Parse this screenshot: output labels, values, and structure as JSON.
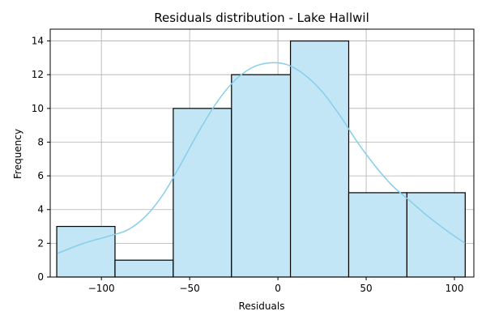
{
  "chart_data": {
    "type": "bar",
    "title": "Residuals distribution - Lake Hallwil",
    "xlabel": "Residuals",
    "ylabel": "Frequency",
    "xlim": [
      -129,
      111
    ],
    "ylim": [
      0,
      14.7
    ],
    "grid": true,
    "x_ticks": [
      -100,
      -50,
      0,
      50,
      100
    ],
    "x_tick_labels": [
      "−100",
      "−50",
      "0",
      "50",
      "100"
    ],
    "y_ticks": [
      0,
      2,
      4,
      6,
      8,
      10,
      12,
      14
    ],
    "y_tick_labels": [
      "0",
      "2",
      "4",
      "6",
      "8",
      "10",
      "12",
      "14"
    ],
    "bins": [
      {
        "x0": -125.3,
        "x1": -92.3,
        "count": 3
      },
      {
        "x0": -92.3,
        "x1": -59.3,
        "count": 1
      },
      {
        "x0": -59.3,
        "x1": -26.3,
        "count": 10
      },
      {
        "x0": -26.3,
        "x1": 7.1,
        "count": 12
      },
      {
        "x0": 7.1,
        "x1": 40.1,
        "count": 14
      },
      {
        "x0": 40.1,
        "x1": 73.1,
        "count": 5
      },
      {
        "x0": 73.1,
        "x1": 106.1,
        "count": 5
      }
    ],
    "kde": {
      "x": [
        -125,
        -110,
        -95,
        -85,
        -75,
        -65,
        -55,
        -45,
        -35,
        -25,
        -15,
        -5,
        5,
        15,
        25,
        35,
        45,
        55,
        65,
        75,
        85,
        95,
        106
      ],
      "y": [
        1.4,
        2.0,
        2.45,
        2.8,
        3.6,
        4.9,
        6.7,
        8.6,
        10.3,
        11.6,
        12.4,
        12.7,
        12.6,
        12.0,
        11.0,
        9.6,
        8.0,
        6.6,
        5.4,
        4.5,
        3.6,
        2.8,
        2.0
      ]
    },
    "colors": {
      "bar_fill": "#c2e6f5",
      "bar_edge": "#000000",
      "kde_line": "#87ceeb",
      "grid": "#b0b0b0"
    }
  }
}
